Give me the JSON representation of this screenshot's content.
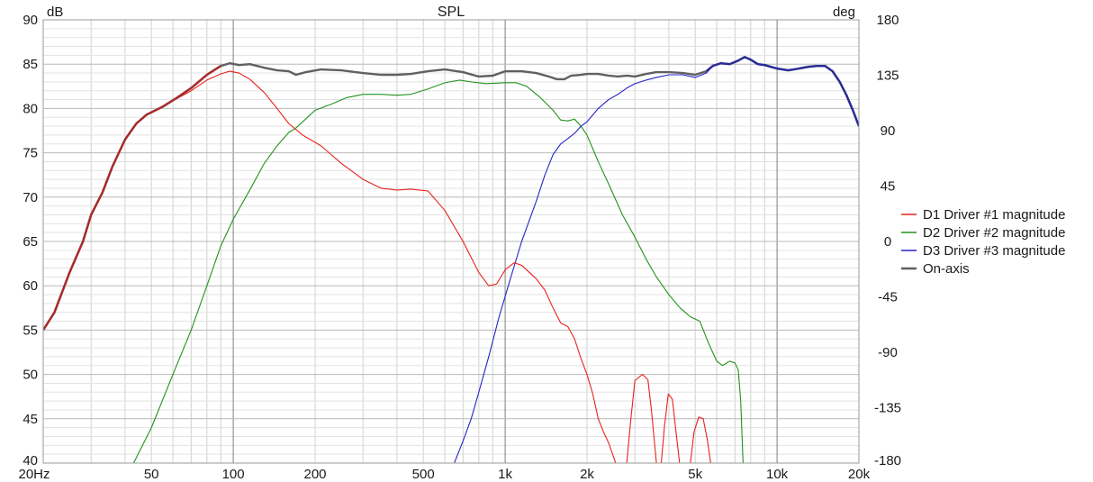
{
  "chart_data": {
    "type": "line",
    "title": "SPL",
    "y_unit": "dB",
    "y2_unit": "deg",
    "x_scale": "log",
    "xlim": [
      20,
      20000
    ],
    "ylim": [
      40,
      90
    ],
    "y2lim": [
      -180,
      180
    ],
    "x_tick_labels": [
      {
        "v": 20,
        "t": "20Hz"
      },
      {
        "v": 50,
        "t": "50"
      },
      {
        "v": 100,
        "t": "100"
      },
      {
        "v": 200,
        "t": "200"
      },
      {
        "v": 500,
        "t": "500"
      },
      {
        "v": 1000,
        "t": "1k"
      },
      {
        "v": 2000,
        "t": "2k"
      },
      {
        "v": 5000,
        "t": "5k"
      },
      {
        "v": 10000,
        "t": "10k"
      },
      {
        "v": 20000,
        "t": "20k"
      }
    ],
    "y_ticks": [
      40,
      45,
      50,
      55,
      60,
      65,
      70,
      75,
      80,
      85,
      90
    ],
    "y2_ticks": [
      -180,
      -135,
      -90,
      -45,
      0,
      45,
      90,
      135,
      180
    ],
    "grid": true,
    "legend_position": "right",
    "series": [
      {
        "name": "D1 Driver #1 magnitude",
        "color": "#e8221c",
        "points": [
          [
            20,
            55
          ],
          [
            22,
            57
          ],
          [
            25,
            61.5
          ],
          [
            28,
            65
          ],
          [
            30,
            68
          ],
          [
            33,
            70.5
          ],
          [
            36,
            73.5
          ],
          [
            40,
            76.5
          ],
          [
            44,
            78.3
          ],
          [
            48,
            79.3
          ],
          [
            55,
            80.2
          ],
          [
            62,
            81.1
          ],
          [
            70,
            82
          ],
          [
            80,
            83.2
          ],
          [
            90,
            83.9
          ],
          [
            97,
            84.2
          ],
          [
            105,
            84
          ],
          [
            115,
            83.3
          ],
          [
            130,
            81.8
          ],
          [
            145,
            80
          ],
          [
            160,
            78.3
          ],
          [
            180,
            77
          ],
          [
            210,
            75.8
          ],
          [
            250,
            73.8
          ],
          [
            300,
            72
          ],
          [
            350,
            71
          ],
          [
            400,
            70.8
          ],
          [
            450,
            70.9
          ],
          [
            520,
            70.7
          ],
          [
            600,
            68.5
          ],
          [
            700,
            65
          ],
          [
            800,
            61.5
          ],
          [
            870,
            60
          ],
          [
            930,
            60.2
          ],
          [
            1000,
            61.8
          ],
          [
            1080,
            62.6
          ],
          [
            1150,
            62.3
          ],
          [
            1300,
            60.8
          ],
          [
            1400,
            59.5
          ],
          [
            1500,
            57.5
          ],
          [
            1600,
            55.8
          ],
          [
            1700,
            55.4
          ],
          [
            1800,
            54
          ],
          [
            1900,
            51.8
          ],
          [
            2000,
            50
          ],
          [
            2100,
            47.8
          ],
          [
            2200,
            45
          ],
          [
            2300,
            43.5
          ],
          [
            2400,
            42.3
          ],
          [
            2550,
            40
          ],
          [
            2800,
            40
          ],
          [
            2900,
            45
          ],
          [
            3000,
            49.3
          ],
          [
            3200,
            50
          ],
          [
            3350,
            49.4
          ],
          [
            3450,
            46
          ],
          [
            3600,
            40
          ],
          [
            3750,
            40
          ],
          [
            3850,
            44
          ],
          [
            3980,
            47.8
          ],
          [
            4120,
            47.2
          ],
          [
            4250,
            43.5
          ],
          [
            4380,
            40
          ],
          [
            4800,
            40
          ],
          [
            4950,
            43.5
          ],
          [
            5150,
            45.2
          ],
          [
            5350,
            45
          ],
          [
            5550,
            42.5
          ],
          [
            5700,
            40
          ]
        ]
      },
      {
        "name": "D2 Driver #2 magnitude",
        "color": "#22921c",
        "points": [
          [
            43,
            40
          ],
          [
            50,
            44
          ],
          [
            60,
            50
          ],
          [
            70,
            55
          ],
          [
            80,
            60
          ],
          [
            90,
            64.5
          ],
          [
            100,
            67.5
          ],
          [
            115,
            70.8
          ],
          [
            130,
            73.8
          ],
          [
            145,
            75.8
          ],
          [
            160,
            77.3
          ],
          [
            170,
            77.8
          ],
          [
            180,
            78.5
          ],
          [
            200,
            79.8
          ],
          [
            230,
            80.5
          ],
          [
            260,
            81.2
          ],
          [
            300,
            81.6
          ],
          [
            350,
            81.6
          ],
          [
            400,
            81.5
          ],
          [
            450,
            81.6
          ],
          [
            520,
            82.2
          ],
          [
            600,
            82.9
          ],
          [
            680,
            83.2
          ],
          [
            750,
            83
          ],
          [
            850,
            82.8
          ],
          [
            1000,
            82.9
          ],
          [
            1100,
            82.9
          ],
          [
            1200,
            82.5
          ],
          [
            1350,
            81.2
          ],
          [
            1500,
            79.8
          ],
          [
            1600,
            78.7
          ],
          [
            1700,
            78.6
          ],
          [
            1800,
            78.8
          ],
          [
            1900,
            78
          ],
          [
            2000,
            77
          ],
          [
            2200,
            74
          ],
          [
            2400,
            71.5
          ],
          [
            2700,
            68
          ],
          [
            3000,
            65.5
          ],
          [
            3300,
            63
          ],
          [
            3600,
            61
          ],
          [
            4000,
            59
          ],
          [
            4400,
            57.5
          ],
          [
            4800,
            56.5
          ],
          [
            5200,
            56
          ],
          [
            5600,
            53.5
          ],
          [
            6000,
            51.5
          ],
          [
            6300,
            51
          ],
          [
            6700,
            51.5
          ],
          [
            7000,
            51.3
          ],
          [
            7200,
            50.5
          ],
          [
            7350,
            47
          ],
          [
            7500,
            40
          ]
        ]
      },
      {
        "name": "D3 Driver #3 magnitude",
        "color": "#2424c8",
        "points": [
          [
            650,
            40
          ],
          [
            700,
            42.5
          ],
          [
            750,
            45
          ],
          [
            800,
            48
          ],
          [
            870,
            52
          ],
          [
            950,
            56.5
          ],
          [
            1050,
            61
          ],
          [
            1150,
            65
          ],
          [
            1300,
            69.5
          ],
          [
            1400,
            72.5
          ],
          [
            1500,
            74.8
          ],
          [
            1600,
            76
          ],
          [
            1700,
            76.6
          ],
          [
            1800,
            77.2
          ],
          [
            1900,
            78
          ],
          [
            2000,
            78.5
          ],
          [
            2200,
            80
          ],
          [
            2400,
            81
          ],
          [
            2600,
            81.6
          ],
          [
            2800,
            82.3
          ],
          [
            3000,
            82.8
          ],
          [
            3300,
            83.2
          ],
          [
            3600,
            83.5
          ],
          [
            4000,
            83.8
          ],
          [
            4500,
            83.8
          ],
          [
            5000,
            83.5
          ],
          [
            5500,
            84
          ],
          [
            5800,
            84.8
          ],
          [
            6200,
            85.1
          ],
          [
            6700,
            85
          ],
          [
            7200,
            85.4
          ],
          [
            7600,
            85.8
          ],
          [
            8000,
            85.5
          ],
          [
            8500,
            85
          ],
          [
            9000,
            84.9
          ],
          [
            10000,
            84.5
          ],
          [
            11000,
            84.3
          ],
          [
            12000,
            84.5
          ],
          [
            13000,
            84.7
          ],
          [
            14000,
            84.8
          ],
          [
            15000,
            84.8
          ],
          [
            16000,
            84.2
          ],
          [
            17000,
            83
          ],
          [
            18000,
            81.5
          ],
          [
            19000,
            79.8
          ],
          [
            20000,
            78
          ]
        ]
      },
      {
        "name": "On-axis",
        "color": "#606060",
        "points": [
          [
            20,
            55
          ],
          [
            22,
            57
          ],
          [
            25,
            61.5
          ],
          [
            28,
            65
          ],
          [
            30,
            68
          ],
          [
            33,
            70.5
          ],
          [
            36,
            73.5
          ],
          [
            40,
            76.5
          ],
          [
            44,
            78.3
          ],
          [
            48,
            79.3
          ],
          [
            55,
            80.2
          ],
          [
            62,
            81.2
          ],
          [
            70,
            82.3
          ],
          [
            80,
            83.8
          ],
          [
            90,
            84.8
          ],
          [
            97,
            85.1
          ],
          [
            105,
            84.9
          ],
          [
            115,
            85
          ],
          [
            130,
            84.6
          ],
          [
            145,
            84.3
          ],
          [
            160,
            84.2
          ],
          [
            170,
            83.8
          ],
          [
            185,
            84.1
          ],
          [
            210,
            84.4
          ],
          [
            250,
            84.3
          ],
          [
            300,
            84
          ],
          [
            350,
            83.8
          ],
          [
            400,
            83.8
          ],
          [
            450,
            83.9
          ],
          [
            520,
            84.2
          ],
          [
            600,
            84.4
          ],
          [
            700,
            84.1
          ],
          [
            800,
            83.6
          ],
          [
            900,
            83.7
          ],
          [
            1000,
            84.2
          ],
          [
            1150,
            84.2
          ],
          [
            1300,
            84
          ],
          [
            1450,
            83.6
          ],
          [
            1550,
            83.3
          ],
          [
            1650,
            83.3
          ],
          [
            1750,
            83.7
          ],
          [
            1900,
            83.8
          ],
          [
            2000,
            83.9
          ],
          [
            2200,
            83.9
          ],
          [
            2400,
            83.7
          ],
          [
            2600,
            83.6
          ],
          [
            2800,
            83.7
          ],
          [
            3000,
            83.6
          ],
          [
            3300,
            83.9
          ],
          [
            3600,
            84.1
          ],
          [
            4000,
            84.1
          ],
          [
            4500,
            84
          ],
          [
            5000,
            83.8
          ],
          [
            5500,
            84.2
          ],
          [
            5800,
            84.8
          ],
          [
            6200,
            85.1
          ],
          [
            6700,
            85
          ],
          [
            7200,
            85.4
          ],
          [
            7600,
            85.8
          ],
          [
            8000,
            85.5
          ],
          [
            8500,
            85
          ],
          [
            9000,
            84.9
          ],
          [
            10000,
            84.5
          ],
          [
            11000,
            84.3
          ],
          [
            12000,
            84.5
          ],
          [
            13000,
            84.7
          ],
          [
            14000,
            84.8
          ],
          [
            15000,
            84.8
          ],
          [
            16000,
            84.2
          ],
          [
            17000,
            83
          ],
          [
            18000,
            81.5
          ],
          [
            19000,
            79.8
          ],
          [
            20000,
            78
          ]
        ]
      }
    ]
  }
}
